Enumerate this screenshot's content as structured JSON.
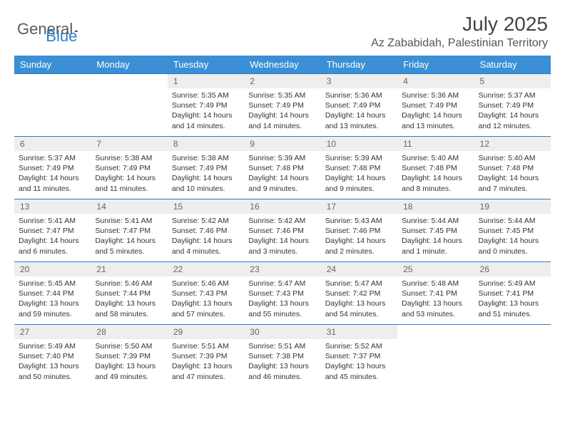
{
  "logo": {
    "text1": "General",
    "text2": "Blue"
  },
  "title": "July 2025",
  "location": "Az Zababidah, Palestinian Territory",
  "colors": {
    "header_bg": "#3b8fd4",
    "header_text": "#ffffff",
    "day_number_bg": "#eeeeee",
    "border": "#2a7fc9",
    "logo_blue": "#2a7fc9",
    "logo_gray": "#5a5a5a"
  },
  "day_headers": [
    "Sunday",
    "Monday",
    "Tuesday",
    "Wednesday",
    "Thursday",
    "Friday",
    "Saturday"
  ],
  "weeks": [
    [
      null,
      null,
      {
        "n": "1",
        "sunrise": "5:35 AM",
        "sunset": "7:49 PM",
        "daylight": "14 hours and 14 minutes."
      },
      {
        "n": "2",
        "sunrise": "5:35 AM",
        "sunset": "7:49 PM",
        "daylight": "14 hours and 14 minutes."
      },
      {
        "n": "3",
        "sunrise": "5:36 AM",
        "sunset": "7:49 PM",
        "daylight": "14 hours and 13 minutes."
      },
      {
        "n": "4",
        "sunrise": "5:36 AM",
        "sunset": "7:49 PM",
        "daylight": "14 hours and 13 minutes."
      },
      {
        "n": "5",
        "sunrise": "5:37 AM",
        "sunset": "7:49 PM",
        "daylight": "14 hours and 12 minutes."
      }
    ],
    [
      {
        "n": "6",
        "sunrise": "5:37 AM",
        "sunset": "7:49 PM",
        "daylight": "14 hours and 11 minutes."
      },
      {
        "n": "7",
        "sunrise": "5:38 AM",
        "sunset": "7:49 PM",
        "daylight": "14 hours and 11 minutes."
      },
      {
        "n": "8",
        "sunrise": "5:38 AM",
        "sunset": "7:49 PM",
        "daylight": "14 hours and 10 minutes."
      },
      {
        "n": "9",
        "sunrise": "5:39 AM",
        "sunset": "7:48 PM",
        "daylight": "14 hours and 9 minutes."
      },
      {
        "n": "10",
        "sunrise": "5:39 AM",
        "sunset": "7:48 PM",
        "daylight": "14 hours and 9 minutes."
      },
      {
        "n": "11",
        "sunrise": "5:40 AM",
        "sunset": "7:48 PM",
        "daylight": "14 hours and 8 minutes."
      },
      {
        "n": "12",
        "sunrise": "5:40 AM",
        "sunset": "7:48 PM",
        "daylight": "14 hours and 7 minutes."
      }
    ],
    [
      {
        "n": "13",
        "sunrise": "5:41 AM",
        "sunset": "7:47 PM",
        "daylight": "14 hours and 6 minutes."
      },
      {
        "n": "14",
        "sunrise": "5:41 AM",
        "sunset": "7:47 PM",
        "daylight": "14 hours and 5 minutes."
      },
      {
        "n": "15",
        "sunrise": "5:42 AM",
        "sunset": "7:46 PM",
        "daylight": "14 hours and 4 minutes."
      },
      {
        "n": "16",
        "sunrise": "5:42 AM",
        "sunset": "7:46 PM",
        "daylight": "14 hours and 3 minutes."
      },
      {
        "n": "17",
        "sunrise": "5:43 AM",
        "sunset": "7:46 PM",
        "daylight": "14 hours and 2 minutes."
      },
      {
        "n": "18",
        "sunrise": "5:44 AM",
        "sunset": "7:45 PM",
        "daylight": "14 hours and 1 minute."
      },
      {
        "n": "19",
        "sunrise": "5:44 AM",
        "sunset": "7:45 PM",
        "daylight": "14 hours and 0 minutes."
      }
    ],
    [
      {
        "n": "20",
        "sunrise": "5:45 AM",
        "sunset": "7:44 PM",
        "daylight": "13 hours and 59 minutes."
      },
      {
        "n": "21",
        "sunrise": "5:46 AM",
        "sunset": "7:44 PM",
        "daylight": "13 hours and 58 minutes."
      },
      {
        "n": "22",
        "sunrise": "5:46 AM",
        "sunset": "7:43 PM",
        "daylight": "13 hours and 57 minutes."
      },
      {
        "n": "23",
        "sunrise": "5:47 AM",
        "sunset": "7:43 PM",
        "daylight": "13 hours and 55 minutes."
      },
      {
        "n": "24",
        "sunrise": "5:47 AM",
        "sunset": "7:42 PM",
        "daylight": "13 hours and 54 minutes."
      },
      {
        "n": "25",
        "sunrise": "5:48 AM",
        "sunset": "7:41 PM",
        "daylight": "13 hours and 53 minutes."
      },
      {
        "n": "26",
        "sunrise": "5:49 AM",
        "sunset": "7:41 PM",
        "daylight": "13 hours and 51 minutes."
      }
    ],
    [
      {
        "n": "27",
        "sunrise": "5:49 AM",
        "sunset": "7:40 PM",
        "daylight": "13 hours and 50 minutes."
      },
      {
        "n": "28",
        "sunrise": "5:50 AM",
        "sunset": "7:39 PM",
        "daylight": "13 hours and 49 minutes."
      },
      {
        "n": "29",
        "sunrise": "5:51 AM",
        "sunset": "7:39 PM",
        "daylight": "13 hours and 47 minutes."
      },
      {
        "n": "30",
        "sunrise": "5:51 AM",
        "sunset": "7:38 PM",
        "daylight": "13 hours and 46 minutes."
      },
      {
        "n": "31",
        "sunrise": "5:52 AM",
        "sunset": "7:37 PM",
        "daylight": "13 hours and 45 minutes."
      },
      null,
      null
    ]
  ],
  "labels": {
    "sunrise": "Sunrise: ",
    "sunset": "Sunset: ",
    "daylight": "Daylight: "
  }
}
